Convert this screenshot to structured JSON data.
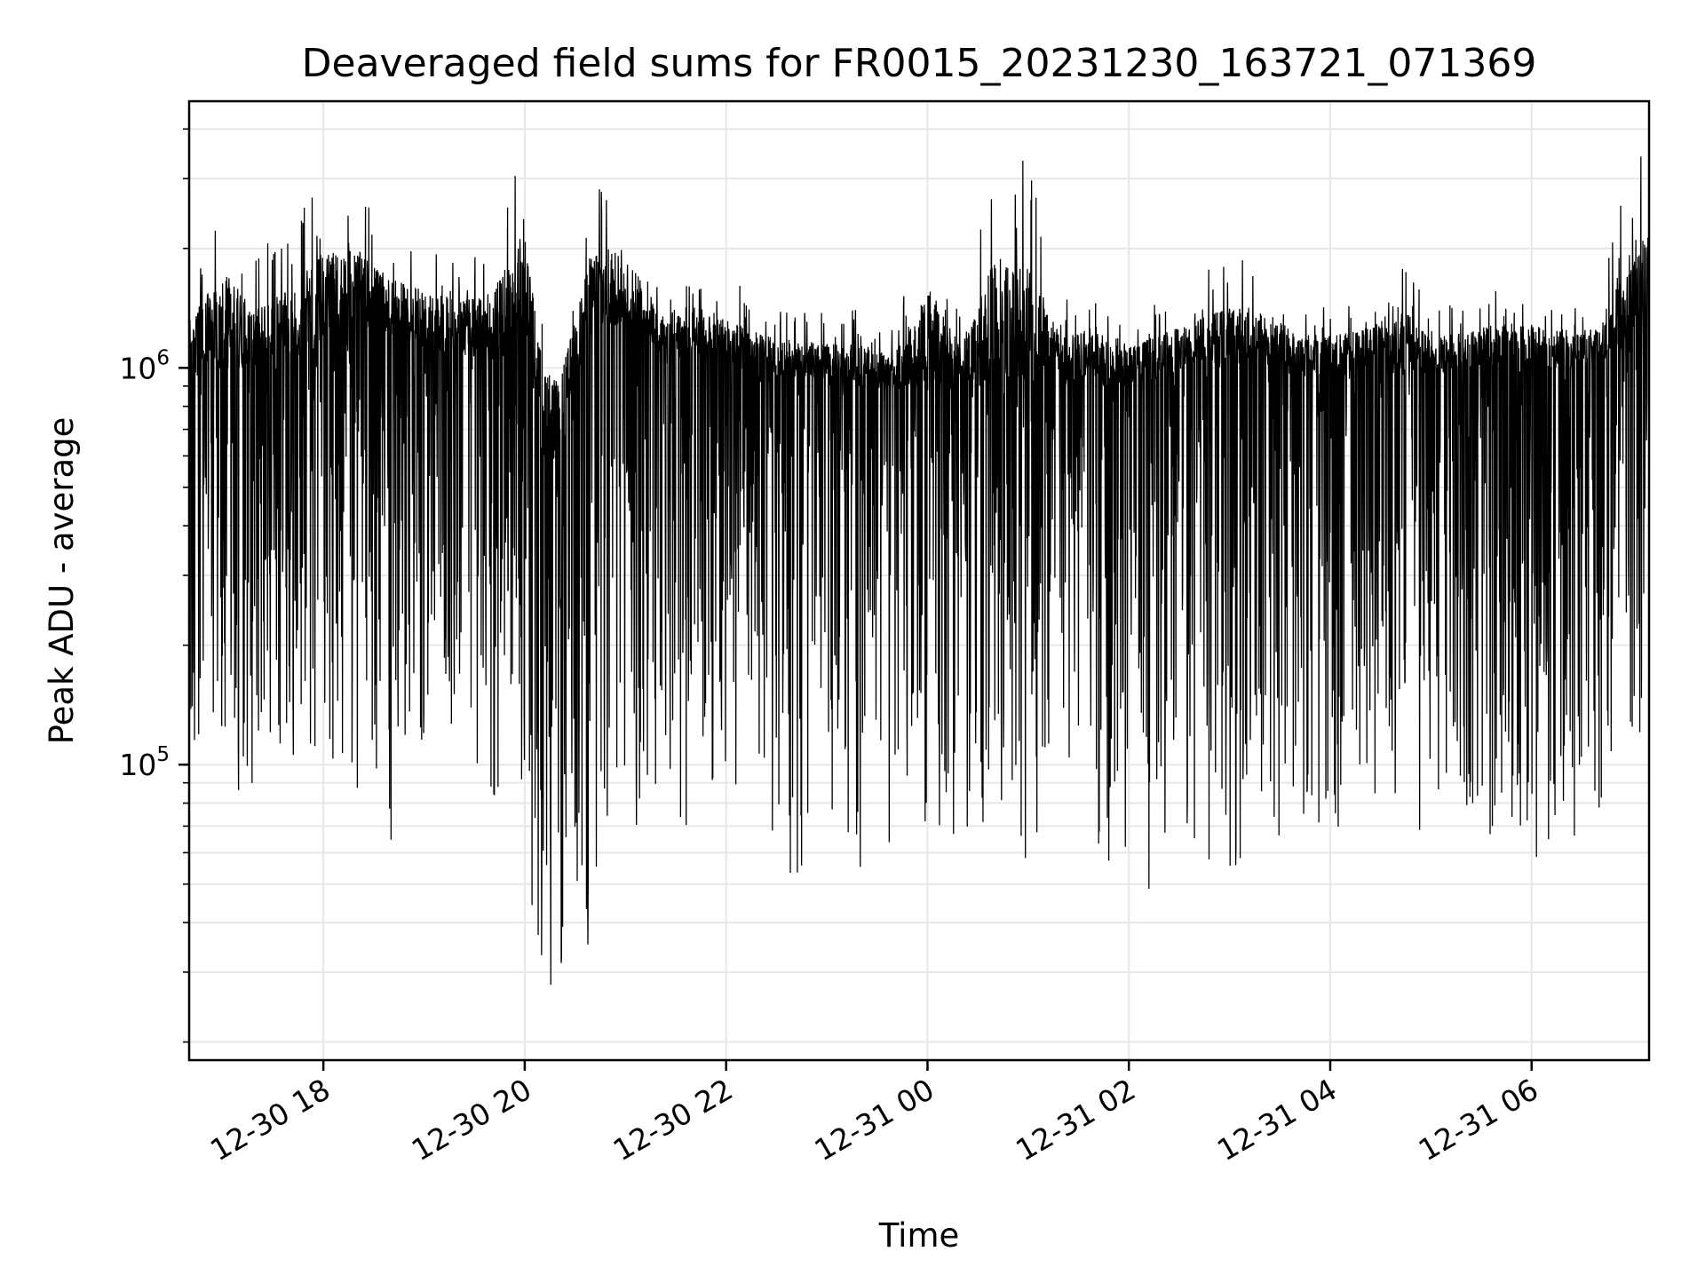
{
  "chart_data": {
    "type": "line",
    "title": "Deaveraged field sums for FR0015_20231230_163721_071369",
    "xlabel": "Time",
    "ylabel": "Peak ADU - average",
    "yscale": "log",
    "xlim": [
      "2023-12-30 16:40",
      "2023-12-31 07:10"
    ],
    "ylim": [
      18000,
      4700000
    ],
    "grid": true,
    "line_color": "#000000",
    "grid_color": "#e6e6e6",
    "x_ticks": [
      {
        "value": "2023-12-30 18:00",
        "label": "12-30 18"
      },
      {
        "value": "2023-12-30 20:00",
        "label": "12-30 20"
      },
      {
        "value": "2023-12-30 22:00",
        "label": "12-30 22"
      },
      {
        "value": "2023-12-31 00:00",
        "label": "12-31 00"
      },
      {
        "value": "2023-12-31 02:00",
        "label": "12-31 02"
      },
      {
        "value": "2023-12-31 04:00",
        "label": "12-31 04"
      },
      {
        "value": "2023-12-31 06:00",
        "label": "12-31 06"
      }
    ],
    "y_ticks": [
      {
        "value": 100000,
        "label_base": "10",
        "label_exp": "5"
      },
      {
        "value": 1000000,
        "label_base": "10",
        "label_exp": "6"
      }
    ],
    "series": [
      {
        "x": [
          "2023-12-30 16:40",
          "2023-12-30 17:00",
          "2023-12-30 17:20",
          "2023-12-30 17:40",
          "2023-12-30 18:00",
          "2023-12-30 18:20",
          "2023-12-30 18:40",
          "2023-12-30 19:00",
          "2023-12-30 19:20",
          "2023-12-30 19:40",
          "2023-12-30 20:00",
          "2023-12-30 20:10",
          "2023-12-30 20:20",
          "2023-12-30 20:30",
          "2023-12-30 20:40",
          "2023-12-30 21:00",
          "2023-12-30 21:20",
          "2023-12-30 21:40",
          "2023-12-30 22:00",
          "2023-12-30 22:20",
          "2023-12-30 22:40",
          "2023-12-30 23:00",
          "2023-12-30 23:20",
          "2023-12-30 23:40",
          "2023-12-31 00:00",
          "2023-12-31 00:20",
          "2023-12-31 00:40",
          "2023-12-31 01:00",
          "2023-12-31 01:20",
          "2023-12-31 01:40",
          "2023-12-31 02:00",
          "2023-12-31 02:20",
          "2023-12-31 02:40",
          "2023-12-31 03:00",
          "2023-12-31 03:20",
          "2023-12-31 03:40",
          "2023-12-31 04:00",
          "2023-12-31 04:20",
          "2023-12-31 04:40",
          "2023-12-31 05:00",
          "2023-12-31 05:20",
          "2023-12-31 05:40",
          "2023-12-31 06:00",
          "2023-12-31 06:20",
          "2023-12-31 06:40",
          "2023-12-31 07:00"
        ],
        "max": [
          1800000,
          2800000,
          1900000,
          2500000,
          3000000,
          2800000,
          2200000,
          2100000,
          1900000,
          2200000,
          3500000,
          1500000,
          1500000,
          1800000,
          3200000,
          2800000,
          1700000,
          1800000,
          1700000,
          1500000,
          1400000,
          1400000,
          1400000,
          1300000,
          2600000,
          1400000,
          3500000,
          3500000,
          1500000,
          1700000,
          1400000,
          1500000,
          1700000,
          1900000,
          1900000,
          1500000,
          1500000,
          1500000,
          2000000,
          1400000,
          1500000,
          1600000,
          1600000,
          1500000,
          1500000,
          3500000
        ],
        "min": [
          75000,
          55000,
          90000,
          100000,
          85000,
          70000,
          60000,
          100000,
          90000,
          55000,
          58000,
          24000,
          24000,
          30000,
          28000,
          55000,
          80000,
          50000,
          70000,
          60000,
          50000,
          50000,
          55000,
          55000,
          60000,
          58000,
          60000,
          55000,
          70000,
          65000,
          42000,
          52000,
          60000,
          52000,
          58000,
          60000,
          58000,
          70000,
          68000,
          60000,
          65000,
          60000,
          55000,
          58000,
          45000,
          90000
        ],
        "typical": [
          900000,
          1000000,
          1000000,
          900000,
          1200000,
          1300000,
          1200000,
          1100000,
          1100000,
          1000000,
          1300000,
          700000,
          500000,
          900000,
          1200000,
          1300000,
          1100000,
          1100000,
          1000000,
          950000,
          950000,
          900000,
          900000,
          850000,
          900000,
          900000,
          900000,
          900000,
          900000,
          900000,
          900000,
          950000,
          1000000,
          1000000,
          1000000,
          950000,
          950000,
          1000000,
          1000000,
          950000,
          1000000,
          1000000,
          1000000,
          1000000,
          1000000,
          1200000
        ]
      }
    ]
  }
}
